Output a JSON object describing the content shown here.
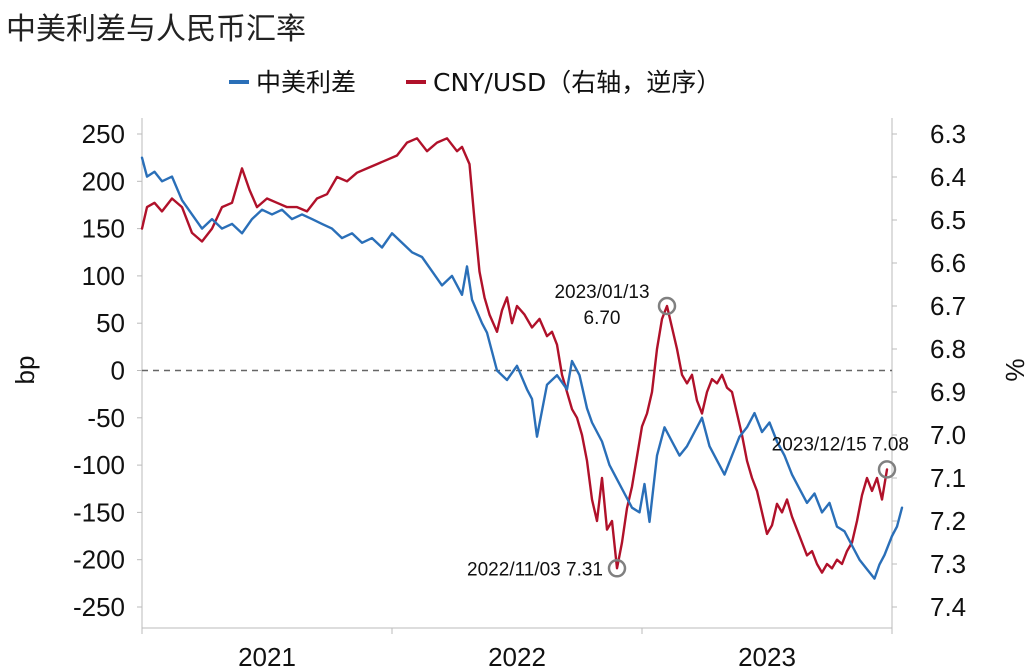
{
  "colors": {
    "spread": "#2a6fb8",
    "cny": "#b0112a",
    "zero_line": "#666666",
    "marker": "#808080"
  },
  "chart_data": {
    "type": "line",
    "title": "中美利差与人民币汇率",
    "legend": {
      "placement": "top-center",
      "entries": [
        "中美利差",
        "CNY/USD（右轴，逆序）"
      ]
    },
    "y_left": {
      "label": "bp",
      "range": [
        -250,
        250
      ],
      "ticks": [
        "250",
        "200",
        "150",
        "100",
        "50",
        "0",
        "-50",
        "-100",
        "-150",
        "-200",
        "-250"
      ]
    },
    "y_right": {
      "label": "%",
      "range": [
        6.3,
        7.4
      ],
      "inverted": true,
      "ticks": [
        "6.3",
        "6.4",
        "6.5",
        "6.6",
        "6.7",
        "6.8",
        "6.9",
        "7.0",
        "7.1",
        "7.2",
        "7.3",
        "7.4"
      ]
    },
    "x_axis": {
      "labels": [
        "2021",
        "2022",
        "2023"
      ],
      "range": [
        2021.0,
        2024.0
      ]
    },
    "zero_line": {
      "value": 0,
      "style": "dashed"
    },
    "series": [
      {
        "name": "中美利差",
        "axis": "left",
        "points": [
          [
            2021.0,
            225
          ],
          [
            2021.02,
            205
          ],
          [
            2021.05,
            210
          ],
          [
            2021.08,
            200
          ],
          [
            2021.12,
            205
          ],
          [
            2021.16,
            180
          ],
          [
            2021.2,
            165
          ],
          [
            2021.24,
            150
          ],
          [
            2021.28,
            160
          ],
          [
            2021.32,
            150
          ],
          [
            2021.36,
            155
          ],
          [
            2021.4,
            145
          ],
          [
            2021.44,
            160
          ],
          [
            2021.48,
            170
          ],
          [
            2021.52,
            165
          ],
          [
            2021.56,
            170
          ],
          [
            2021.6,
            160
          ],
          [
            2021.64,
            165
          ],
          [
            2021.68,
            160
          ],
          [
            2021.72,
            155
          ],
          [
            2021.76,
            150
          ],
          [
            2021.8,
            140
          ],
          [
            2021.84,
            145
          ],
          [
            2021.88,
            135
          ],
          [
            2021.92,
            140
          ],
          [
            2021.96,
            130
          ],
          [
            2022.0,
            145
          ],
          [
            2022.04,
            135
          ],
          [
            2022.08,
            125
          ],
          [
            2022.12,
            120
          ],
          [
            2022.16,
            105
          ],
          [
            2022.2,
            90
          ],
          [
            2022.24,
            100
          ],
          [
            2022.28,
            80
          ],
          [
            2022.3,
            110
          ],
          [
            2022.32,
            75
          ],
          [
            2022.36,
            50
          ],
          [
            2022.38,
            40
          ],
          [
            2022.42,
            0
          ],
          [
            2022.46,
            -10
          ],
          [
            2022.5,
            5
          ],
          [
            2022.54,
            -20
          ],
          [
            2022.56,
            -30
          ],
          [
            2022.58,
            -70
          ],
          [
            2022.62,
            -15
          ],
          [
            2022.66,
            -5
          ],
          [
            2022.7,
            -20
          ],
          [
            2022.72,
            10
          ],
          [
            2022.75,
            -5
          ],
          [
            2022.78,
            -40
          ],
          [
            2022.8,
            -55
          ],
          [
            2022.84,
            -75
          ],
          [
            2022.87,
            -100
          ],
          [
            2022.9,
            -115
          ],
          [
            2022.93,
            -130
          ],
          [
            2022.96,
            -145
          ],
          [
            2022.99,
            -150
          ],
          [
            2023.01,
            -120
          ],
          [
            2023.03,
            -160
          ],
          [
            2023.06,
            -90
          ],
          [
            2023.09,
            -60
          ],
          [
            2023.12,
            -75
          ],
          [
            2023.15,
            -90
          ],
          [
            2023.18,
            -80
          ],
          [
            2023.21,
            -65
          ],
          [
            2023.24,
            -50
          ],
          [
            2023.27,
            -80
          ],
          [
            2023.3,
            -95
          ],
          [
            2023.33,
            -110
          ],
          [
            2023.36,
            -90
          ],
          [
            2023.39,
            -70
          ],
          [
            2023.42,
            -60
          ],
          [
            2023.45,
            -45
          ],
          [
            2023.48,
            -65
          ],
          [
            2023.51,
            -55
          ],
          [
            2023.54,
            -75
          ],
          [
            2023.57,
            -90
          ],
          [
            2023.6,
            -110
          ],
          [
            2023.63,
            -125
          ],
          [
            2023.66,
            -140
          ],
          [
            2023.69,
            -130
          ],
          [
            2023.72,
            -150
          ],
          [
            2023.75,
            -140
          ],
          [
            2023.78,
            -165
          ],
          [
            2023.81,
            -170
          ],
          [
            2023.84,
            -185
          ],
          [
            2023.87,
            -200
          ],
          [
            2023.9,
            -210
          ],
          [
            2023.93,
            -220
          ],
          [
            2023.95,
            -205
          ],
          [
            2023.97,
            -195
          ],
          [
            2024.0,
            -175
          ],
          [
            2024.02,
            -165
          ],
          [
            2024.04,
            -145
          ]
        ]
      },
      {
        "name": "CNY/USD（右轴，逆序）",
        "axis": "right",
        "points": [
          [
            2021.0,
            6.52
          ],
          [
            2021.02,
            6.47
          ],
          [
            2021.05,
            6.46
          ],
          [
            2021.08,
            6.48
          ],
          [
            2021.12,
            6.45
          ],
          [
            2021.16,
            6.47
          ],
          [
            2021.2,
            6.53
          ],
          [
            2021.24,
            6.55
          ],
          [
            2021.28,
            6.52
          ],
          [
            2021.32,
            6.47
          ],
          [
            2021.36,
            6.46
          ],
          [
            2021.4,
            6.38
          ],
          [
            2021.43,
            6.43
          ],
          [
            2021.46,
            6.47
          ],
          [
            2021.5,
            6.45
          ],
          [
            2021.54,
            6.46
          ],
          [
            2021.58,
            6.47
          ],
          [
            2021.62,
            6.47
          ],
          [
            2021.66,
            6.48
          ],
          [
            2021.7,
            6.45
          ],
          [
            2021.74,
            6.44
          ],
          [
            2021.78,
            6.4
          ],
          [
            2021.82,
            6.41
          ],
          [
            2021.86,
            6.39
          ],
          [
            2021.9,
            6.38
          ],
          [
            2021.94,
            6.37
          ],
          [
            2021.98,
            6.36
          ],
          [
            2022.02,
            6.35
          ],
          [
            2022.06,
            6.32
          ],
          [
            2022.1,
            6.31
          ],
          [
            2022.14,
            6.34
          ],
          [
            2022.18,
            6.32
          ],
          [
            2022.22,
            6.31
          ],
          [
            2022.26,
            6.34
          ],
          [
            2022.28,
            6.33
          ],
          [
            2022.31,
            6.37
          ],
          [
            2022.33,
            6.5
          ],
          [
            2022.35,
            6.62
          ],
          [
            2022.37,
            6.68
          ],
          [
            2022.39,
            6.72
          ],
          [
            2022.42,
            6.76
          ],
          [
            2022.44,
            6.71
          ],
          [
            2022.46,
            6.68
          ],
          [
            2022.48,
            6.74
          ],
          [
            2022.5,
            6.7
          ],
          [
            2022.53,
            6.72
          ],
          [
            2022.56,
            6.75
          ],
          [
            2022.59,
            6.73
          ],
          [
            2022.62,
            6.77
          ],
          [
            2022.64,
            6.76
          ],
          [
            2022.66,
            6.79
          ],
          [
            2022.68,
            6.86
          ],
          [
            2022.7,
            6.9
          ],
          [
            2022.72,
            6.94
          ],
          [
            2022.74,
            6.96
          ],
          [
            2022.76,
            7.0
          ],
          [
            2022.78,
            7.06
          ],
          [
            2022.8,
            7.15
          ],
          [
            2022.82,
            7.2
          ],
          [
            2022.84,
            7.1
          ],
          [
            2022.86,
            7.22
          ],
          [
            2022.88,
            7.2
          ],
          [
            2022.9,
            7.31
          ],
          [
            2022.92,
            7.25
          ],
          [
            2022.94,
            7.17
          ],
          [
            2022.96,
            7.12
          ],
          [
            2022.98,
            7.05
          ],
          [
            2023.0,
            6.98
          ],
          [
            2023.02,
            6.95
          ],
          [
            2023.04,
            6.9
          ],
          [
            2023.06,
            6.8
          ],
          [
            2023.08,
            6.73
          ],
          [
            2023.1,
            6.7
          ],
          [
            2023.12,
            6.75
          ],
          [
            2023.14,
            6.8
          ],
          [
            2023.16,
            6.86
          ],
          [
            2023.18,
            6.88
          ],
          [
            2023.2,
            6.86
          ],
          [
            2023.22,
            6.92
          ],
          [
            2023.24,
            6.95
          ],
          [
            2023.26,
            6.9
          ],
          [
            2023.28,
            6.87
          ],
          [
            2023.3,
            6.88
          ],
          [
            2023.32,
            6.86
          ],
          [
            2023.34,
            6.89
          ],
          [
            2023.36,
            6.9
          ],
          [
            2023.38,
            6.95
          ],
          [
            2023.4,
            7.0
          ],
          [
            2023.42,
            7.06
          ],
          [
            2023.44,
            7.1
          ],
          [
            2023.46,
            7.13
          ],
          [
            2023.48,
            7.18
          ],
          [
            2023.5,
            7.23
          ],
          [
            2023.52,
            7.21
          ],
          [
            2023.54,
            7.16
          ],
          [
            2023.56,
            7.18
          ],
          [
            2023.58,
            7.15
          ],
          [
            2023.6,
            7.19
          ],
          [
            2023.62,
            7.22
          ],
          [
            2023.64,
            7.25
          ],
          [
            2023.66,
            7.28
          ],
          [
            2023.68,
            7.27
          ],
          [
            2023.7,
            7.3
          ],
          [
            2023.72,
            7.32
          ],
          [
            2023.74,
            7.3
          ],
          [
            2023.76,
            7.31
          ],
          [
            2023.78,
            7.29
          ],
          [
            2023.8,
            7.3
          ],
          [
            2023.82,
            7.27
          ],
          [
            2023.84,
            7.25
          ],
          [
            2023.86,
            7.2
          ],
          [
            2023.88,
            7.14
          ],
          [
            2023.9,
            7.1
          ],
          [
            2023.92,
            7.13
          ],
          [
            2023.94,
            7.1
          ],
          [
            2023.96,
            7.15
          ],
          [
            2023.98,
            7.08
          ]
        ]
      }
    ],
    "annotations": [
      {
        "text_lines": [
          "2023/01/13",
          "6.70"
        ],
        "x": 2023.1,
        "value": 6.7,
        "axis": "right"
      },
      {
        "text_lines": [
          "2022/11/03 7.31"
        ],
        "x": 2022.9,
        "value": 7.31,
        "axis": "right"
      },
      {
        "text_lines": [
          "2023/12/15 7.08"
        ],
        "x": 2023.98,
        "value": 7.08,
        "axis": "right"
      }
    ]
  }
}
